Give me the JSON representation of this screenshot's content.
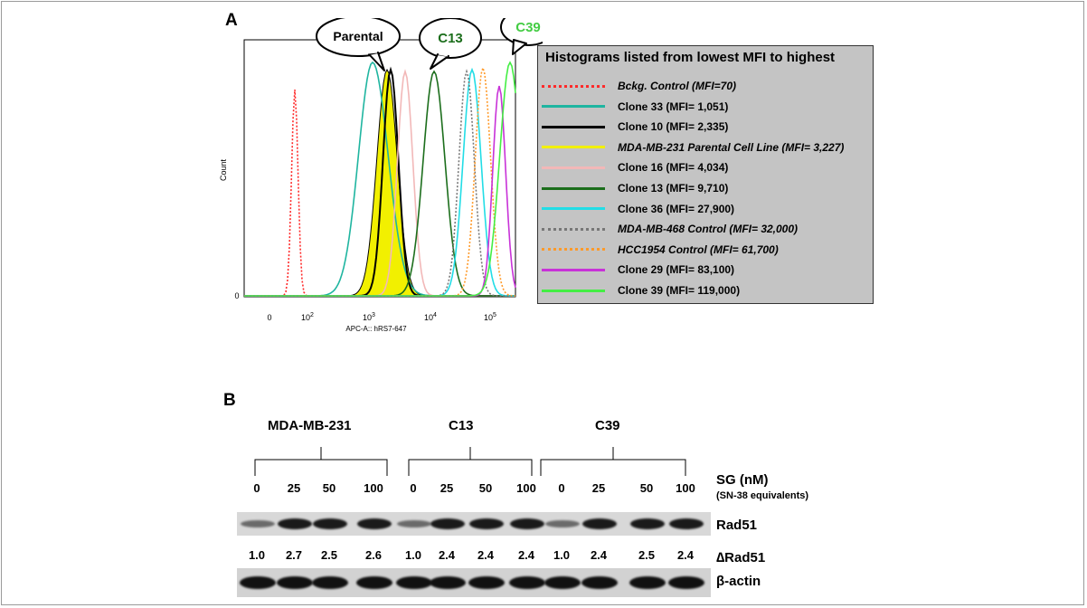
{
  "panels": {
    "a_label": "A",
    "b_label": "B"
  },
  "histogram": {
    "ylabel": "Count",
    "xlabel": "APC-A:: hRS7-647",
    "y_zero": "0",
    "x_ticks": [
      {
        "base": "0",
        "exp": ""
      },
      {
        "base": "10",
        "exp": "2"
      },
      {
        "base": "10",
        "exp": "3"
      },
      {
        "base": "10",
        "exp": "4"
      },
      {
        "base": "10",
        "exp": "5"
      }
    ],
    "bubbles": {
      "parental": "Parental",
      "c13": "C13",
      "c39": "C39"
    }
  },
  "legend": {
    "title": "Histograms listed from lowest MFI to highest",
    "entries": [
      {
        "label": "Bckg. Control  (MFI=70)",
        "color": "#ff2a2a",
        "style": "dotted",
        "italic": true
      },
      {
        "label": "Clone 33 (MFI= 1,051)",
        "color": "#1fb5a0",
        "style": "solid",
        "italic": false
      },
      {
        "label": "Clone 10 (MFI= 2,335)",
        "color": "#000000",
        "style": "solid",
        "italic": false
      },
      {
        "label": "MDA-MB-231 Parental Cell Line (MFI= 3,227)",
        "color": "#f2f000",
        "style": "solid",
        "italic": true
      },
      {
        "label": "Clone 16 (MFI= 4,034)",
        "color": "#f2b8b8",
        "style": "solid",
        "italic": false
      },
      {
        "label": "Clone 13 (MFI= 9,710)",
        "color": "#1c6e1c",
        "style": "solid",
        "italic": false
      },
      {
        "label": "Clone 36 (MFI= 27,900)",
        "color": "#22dde6",
        "style": "solid",
        "italic": false
      },
      {
        "label": "MDA-MB-468  Control (MFI= 32,000)",
        "color": "#777777",
        "style": "dotted",
        "italic": true
      },
      {
        "label": "HCC1954 Control (MFI= 61,700)",
        "color": "#ff9a2a",
        "style": "dotted",
        "italic": true
      },
      {
        "label": "Clone 29 (MFI= 83,100)",
        "color": "#c832d8",
        "style": "solid",
        "italic": false
      },
      {
        "label": "Clone 39 (MFI= 119,000)",
        "color": "#44ee44",
        "style": "solid",
        "italic": false
      }
    ]
  },
  "blot": {
    "groups": [
      "MDA-MB-231",
      "C13",
      "C39"
    ],
    "concentrations": [
      "0",
      "25",
      "50",
      "100",
      "0",
      "25",
      "50",
      "100",
      "0",
      "25",
      "50",
      "100"
    ],
    "treatment_label": "SG (nM)",
    "treatment_sublabel": "(SN-38 equivalents)",
    "rad51_label": "Rad51",
    "ratio_label": "∆Rad51",
    "ratios": [
      "1.0",
      "2.7",
      "2.5",
      "2.6",
      "1.0",
      "2.4",
      "2.4",
      "2.4",
      "1.0",
      "2.4",
      "2.5",
      "2.4"
    ],
    "actin_label": "β-actin"
  }
}
